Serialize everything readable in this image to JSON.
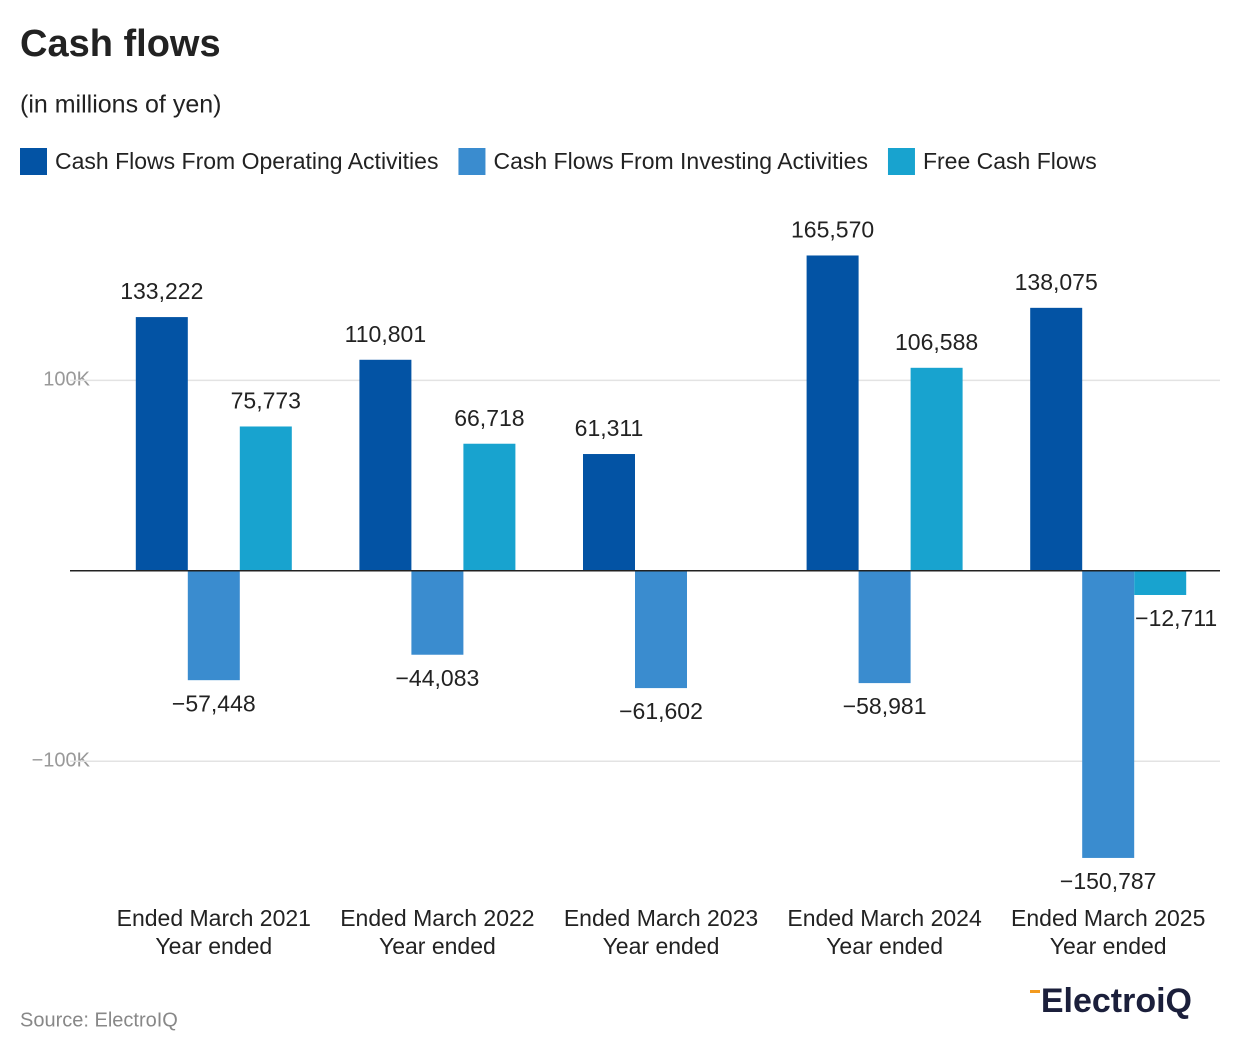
{
  "chart_data": {
    "type": "bar",
    "title": "Cash flows",
    "subtitle": "(in millions of yen)",
    "categories": [
      [
        "Ended March 2021",
        "Year ended"
      ],
      [
        "Ended March 2022",
        "Year ended"
      ],
      [
        "Ended March 2023",
        "Year ended"
      ],
      [
        "Ended March 2024",
        "Year ended"
      ],
      [
        "Ended March 2025",
        "Year ended"
      ]
    ],
    "series": [
      {
        "name": "Cash Flows From Operating Activities",
        "color": "#0353a4",
        "values": [
          133222,
          110801,
          61311,
          165570,
          138075
        ],
        "value_labels": [
          "133,222",
          "110,801",
          "61,311",
          "165,570",
          "138,075"
        ]
      },
      {
        "name": "Cash Flows From Investing Activities",
        "color": "#3a8ccf",
        "values": [
          -57448,
          -44083,
          -61602,
          -58981,
          -150787
        ],
        "value_labels": [
          "−57,448",
          "−44,083",
          "−61,602",
          "−58,981",
          "−150,787"
        ]
      },
      {
        "name": "Free Cash Flows",
        "color": "#18a3cf",
        "values": [
          75773,
          66718,
          null,
          106588,
          -12711
        ],
        "value_labels": [
          "75,773",
          "66,718",
          null,
          "106,588",
          "−12,711"
        ]
      }
    ],
    "ylim": [
      -165000,
      180000
    ],
    "yticks": [
      {
        "value": -100000,
        "label": "−100K"
      },
      {
        "value": 100000,
        "label": "100K"
      }
    ],
    "grid": true,
    "source": "Source: ElectroIQ",
    "logo": "ElectroiQ"
  }
}
